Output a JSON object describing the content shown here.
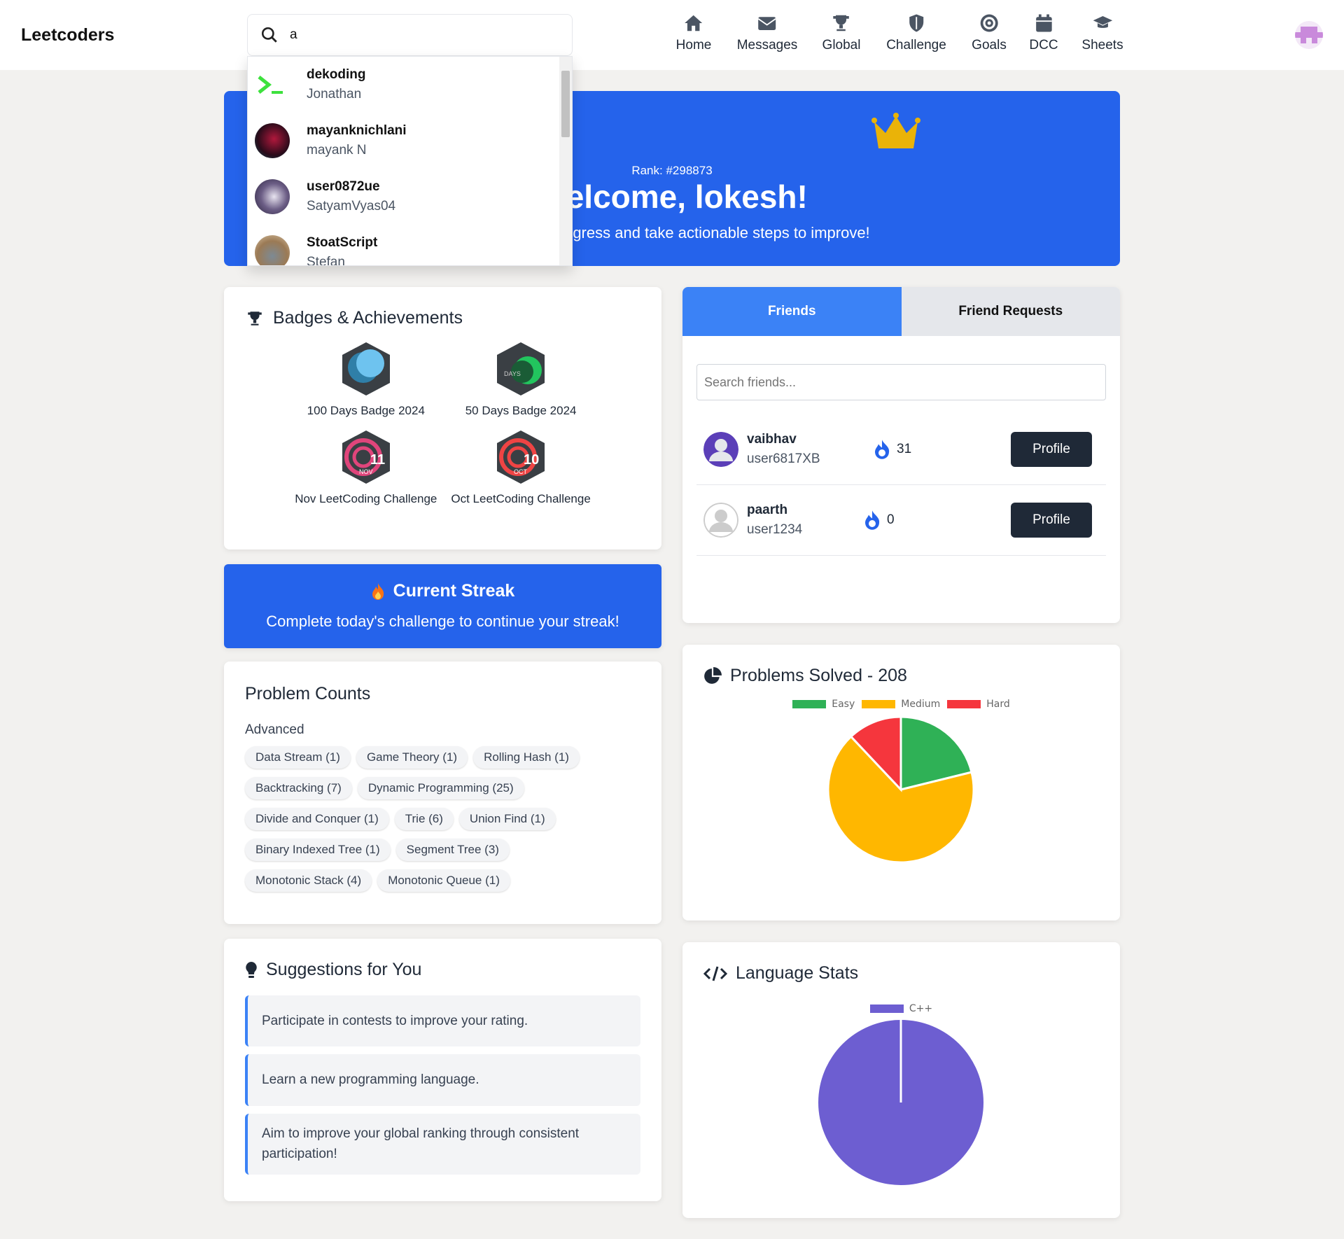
{
  "header": {
    "logo": "Leetcoders",
    "search_value": "a",
    "nav": [
      {
        "label": "Home",
        "icon": "home-icon"
      },
      {
        "label": "Messages",
        "icon": "envelope-icon"
      },
      {
        "label": "Global",
        "icon": "trophy-icon"
      },
      {
        "label": "Challenge",
        "icon": "shield-icon"
      },
      {
        "label": "Goals",
        "icon": "target-icon"
      },
      {
        "label": "DCC",
        "icon": "calendar-icon"
      },
      {
        "label": "Sheets",
        "icon": "graduation-cap-icon"
      }
    ]
  },
  "search_results": [
    {
      "username": "dekoding",
      "name": "Jonathan"
    },
    {
      "username": "mayanknichlani",
      "name": "mayank N"
    },
    {
      "username": "user0872ue",
      "name": "SatyamVyas04"
    },
    {
      "username": "StoatScript",
      "name": "Stefan"
    }
  ],
  "banner": {
    "rank": "Rank: #298873",
    "title": "Welcome, lokesh!",
    "subtitle": "Track your progress and take actionable steps to improve!"
  },
  "badges": {
    "title": "Badges & Achievements",
    "items": [
      {
        "label": "100 Days Badge 2024"
      },
      {
        "label": "50 Days Badge 2024"
      },
      {
        "label": "Nov LeetCoding Challenge",
        "num": "11",
        "mon": "NOV"
      },
      {
        "label": "Oct LeetCoding Challenge",
        "num": "10",
        "mon": "OCT"
      }
    ]
  },
  "streak": {
    "title": "Current Streak",
    "subtitle": "Complete today's challenge to continue your streak!"
  },
  "problem_counts": {
    "title": "Problem Counts",
    "section": "Advanced",
    "tags": [
      "Data Stream (1)",
      "Game Theory (1)",
      "Rolling Hash (1)",
      "Backtracking (7)",
      "Dynamic Programming (25)",
      "Divide and Conquer (1)",
      "Trie (6)",
      "Union Find (1)",
      "Binary Indexed Tree (1)",
      "Segment Tree (3)",
      "Monotonic Stack (4)",
      "Monotonic Queue (1)"
    ]
  },
  "suggestions": {
    "title": "Suggestions for You",
    "items": [
      "Participate in contests to improve your rating.",
      "Learn a new programming language.",
      "Aim to improve your global ranking through consistent participation!"
    ]
  },
  "friends": {
    "tabs": [
      "Friends",
      "Friend Requests"
    ],
    "search_placeholder": "Search friends...",
    "profile_label": "Profile",
    "list": [
      {
        "name": "vaibhav",
        "username": "user6817XB",
        "streak": "31"
      },
      {
        "name": "paarth",
        "username": "user1234",
        "streak": "0"
      }
    ]
  },
  "colors": {
    "primary": "#2563eb",
    "tab_active": "#3b82f6",
    "easy": "#2fb156",
    "medium": "#ffb700",
    "hard": "#f5363d",
    "cpp": "#6d5ed1"
  },
  "chart_data": [
    {
      "type": "pie",
      "title": "Problems Solved - 208",
      "categories": [
        "Easy",
        "Medium",
        "Hard"
      ],
      "values": [
        44,
        139,
        25
      ],
      "colors": [
        "#2fb156",
        "#ffb700",
        "#f5363d"
      ],
      "legend": "top"
    },
    {
      "type": "pie",
      "title": "Language Stats",
      "categories": [
        "C++"
      ],
      "values": [
        1
      ],
      "colors": [
        "#6d5ed1"
      ],
      "legend": "top"
    }
  ]
}
